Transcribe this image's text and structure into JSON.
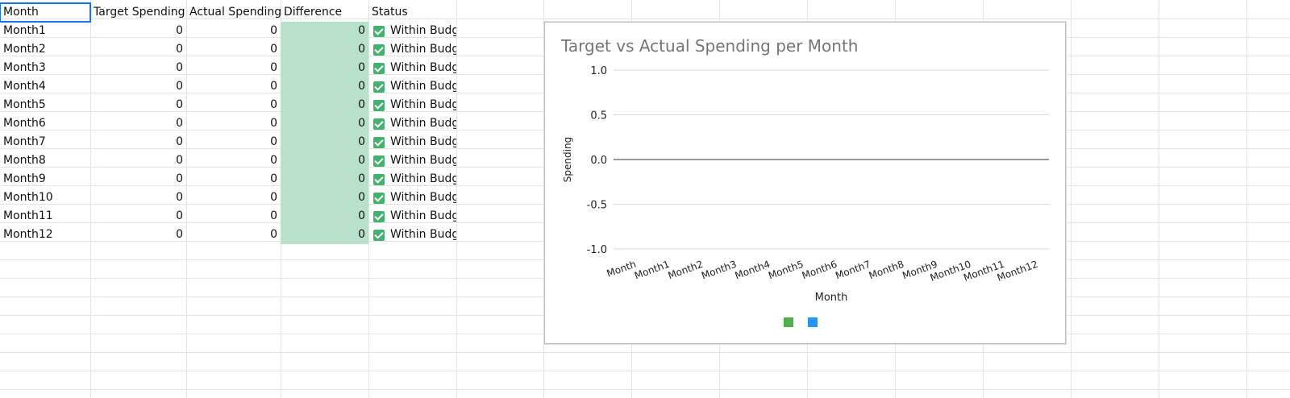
{
  "sheet": {
    "headers": [
      "Month",
      "Target Spending",
      "Actual Spending",
      "Difference",
      "Status"
    ],
    "rows": [
      {
        "month": "Month1",
        "target": "0",
        "actual": "0",
        "difference": "0",
        "status": "Within Budget"
      },
      {
        "month": "Month2",
        "target": "0",
        "actual": "0",
        "difference": "0",
        "status": "Within Budget"
      },
      {
        "month": "Month3",
        "target": "0",
        "actual": "0",
        "difference": "0",
        "status": "Within Budget"
      },
      {
        "month": "Month4",
        "target": "0",
        "actual": "0",
        "difference": "0",
        "status": "Within Budget"
      },
      {
        "month": "Month5",
        "target": "0",
        "actual": "0",
        "difference": "0",
        "status": "Within Budget"
      },
      {
        "month": "Month6",
        "target": "0",
        "actual": "0",
        "difference": "0",
        "status": "Within Budget"
      },
      {
        "month": "Month7",
        "target": "0",
        "actual": "0",
        "difference": "0",
        "status": "Within Budget"
      },
      {
        "month": "Month8",
        "target": "0",
        "actual": "0",
        "difference": "0",
        "status": "Within Budget"
      },
      {
        "month": "Month9",
        "target": "0",
        "actual": "0",
        "difference": "0",
        "status": "Within Budget"
      },
      {
        "month": "Month10",
        "target": "0",
        "actual": "0",
        "difference": "0",
        "status": "Within Budget"
      },
      {
        "month": "Month11",
        "target": "0",
        "actual": "0",
        "difference": "0",
        "status": "Within Budget"
      },
      {
        "month": "Month12",
        "target": "0",
        "actual": "0",
        "difference": "0",
        "status": "Within Budget"
      }
    ],
    "status_icon": "checkbox-checked-icon",
    "colors": {
      "difference_fill": "#b8e0ca",
      "check_green": "#45b070",
      "selection": "#1a73e8"
    }
  },
  "chart_data": {
    "type": "bar",
    "title": "Target vs Actual Spending per Month",
    "xlabel": "Month",
    "ylabel": "Spending",
    "categories": [
      "Month",
      "Month1",
      "Month2",
      "Month3",
      "Month4",
      "Month5",
      "Month6",
      "Month7",
      "Month8",
      "Month9",
      "Month10",
      "Month11",
      "Month12"
    ],
    "series": [
      {
        "values": [
          0,
          0,
          0,
          0,
          0,
          0,
          0,
          0,
          0,
          0,
          0,
          0,
          0
        ],
        "color": "#4caf50"
      },
      {
        "values": [
          0,
          0,
          0,
          0,
          0,
          0,
          0,
          0,
          0,
          0,
          0,
          0,
          0
        ],
        "color": "#2196f3"
      }
    ],
    "yticks": [
      "1.0",
      "0.5",
      "0.0",
      "-0.5",
      "-1.0"
    ],
    "ylim": [
      -1,
      1
    ],
    "grid": true,
    "legend": "bottom"
  }
}
